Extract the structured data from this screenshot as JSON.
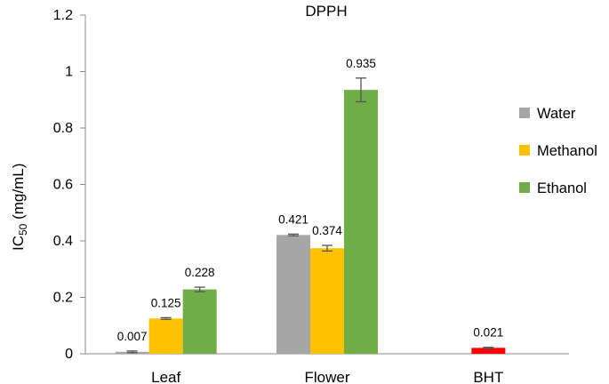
{
  "chart_data": {
    "type": "bar",
    "title": "DPPH",
    "xlabel": "",
    "ylabel": "IC50 (mg/mL)",
    "ylabel_main": "IC",
    "ylabel_sub": "50",
    "ylabel_rest": " (mg/mL)",
    "ylim": [
      0,
      1.2
    ],
    "yticks": [
      0,
      0.2,
      0.4,
      0.6,
      0.8,
      1,
      1.2
    ],
    "ytick_labels": [
      "0",
      "0.2",
      "0.4",
      "0.6",
      "0.8",
      "1",
      "1.2"
    ],
    "grid": false,
    "legend_position": "right",
    "categories": [
      "Leaf",
      "Flower",
      "BHT"
    ],
    "series": [
      {
        "name": "Water",
        "color": "#a6a6a6",
        "values": [
          0.007,
          0.421,
          null
        ],
        "errors": [
          0.003,
          0.003,
          null
        ],
        "labels": [
          "0.007",
          "0.421",
          null
        ]
      },
      {
        "name": "Methanol",
        "color": "#ffc000",
        "values": [
          0.125,
          0.374,
          null
        ],
        "errors": [
          0.003,
          0.01,
          null
        ],
        "labels": [
          "0.125",
          "0.374",
          null
        ]
      },
      {
        "name": "Ethanol",
        "color": "#70ad47",
        "values": [
          0.228,
          0.935,
          null
        ],
        "errors": [
          0.008,
          0.042,
          null
        ],
        "labels": [
          "0.228",
          "0.935",
          null
        ]
      }
    ],
    "reference": {
      "category": "BHT",
      "color": "#ff0000",
      "value": 0.021,
      "error": 0.002,
      "label": "0.021"
    }
  }
}
